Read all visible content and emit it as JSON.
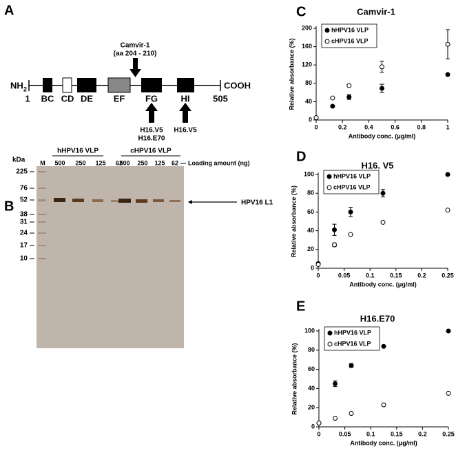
{
  "panel_a": {
    "label": "A",
    "n_terminus": "NH",
    "n_terminus_sub": "2",
    "c_terminus": "COOH",
    "start": "1",
    "end": "505",
    "loops": [
      "BC",
      "CD",
      "DE",
      "EF",
      "FG",
      "HI"
    ],
    "top_antibody": {
      "name": "Camvir-1",
      "epitope": "(aa 204 - 210)"
    },
    "bottom_antibodies": [
      {
        "names": [
          "H16.V5",
          "H16.E70"
        ]
      },
      {
        "names": [
          "H16.V5"
        ]
      }
    ]
  },
  "panel_b": {
    "label": "B",
    "unit": "kDa",
    "marker_lane": "M",
    "markers": [
      "225",
      "76",
      "52",
      "38",
      "31",
      "24",
      "17",
      "10"
    ],
    "groups": [
      {
        "name": "hHPV16 VLP",
        "lanes": [
          "500",
          "250",
          "125",
          "62"
        ]
      },
      {
        "name": "cHPV16 VLP",
        "lanes": [
          "500",
          "250",
          "125",
          "62"
        ]
      }
    ],
    "loading_label": "Loading amount (ng)",
    "band_label": "HPV16 L1"
  },
  "chart_data": [
    {
      "type": "scatter",
      "panel": "C",
      "title": "Camvir-1",
      "x_label": "Antibody conc. (μg/ml)",
      "y_label": "Relative absorbance (%)",
      "x": [
        0,
        0.125,
        0.25,
        0.5,
        1
      ],
      "xlim": [
        0,
        1
      ],
      "xticks": [
        0,
        0.2,
        0.4,
        0.6,
        0.8,
        1
      ],
      "ylim": [
        0,
        200
      ],
      "yticks": [
        0,
        40,
        80,
        120,
        160,
        200
      ],
      "legend": "upper left",
      "series": [
        {
          "name": "hHPV16 VLP",
          "color": "#000000",
          "values": [
            5,
            30,
            50,
            69,
            99
          ],
          "errors": [
            null,
            null,
            5,
            9,
            null
          ]
        },
        {
          "name": "cHPV16 VLP",
          "color": "#ffffff",
          "values": [
            5,
            48,
            75,
            116,
            165
          ],
          "errors": [
            null,
            null,
            null,
            12,
            32
          ]
        }
      ]
    },
    {
      "type": "scatter",
      "panel": "D",
      "title": "H16. V5",
      "x_label": "Antibody conc. (μg/ml)",
      "y_label": "Relative absorbance (%)",
      "x": [
        0,
        0.03125,
        0.0625,
        0.125,
        0.25
      ],
      "xlim": [
        0,
        0.25
      ],
      "xticks": [
        0,
        0.05,
        0.1,
        0.15,
        0.2,
        0.25
      ],
      "ylim": [
        0,
        100
      ],
      "yticks": [
        0,
        20,
        40,
        60,
        80,
        100
      ],
      "legend": "upper left",
      "series": [
        {
          "name": "hHPV16 VLP",
          "color": "#000000",
          "values": [
            5,
            41,
            60,
            80,
            100
          ],
          "errors": [
            null,
            6,
            5,
            4,
            null
          ]
        },
        {
          "name": "cHPV16 VLP",
          "color": "#ffffff",
          "values": [
            4,
            25,
            36,
            49,
            62
          ],
          "errors": [
            null,
            2,
            null,
            null,
            null
          ]
        }
      ]
    },
    {
      "type": "scatter",
      "panel": "E",
      "title": "H16.E70",
      "x_label": "Antibody conc. (μg/ml)",
      "y_label": "Relative absorbance (%)",
      "x": [
        0,
        0.03125,
        0.0625,
        0.125,
        0.25
      ],
      "xlim": [
        0,
        0.25
      ],
      "xticks": [
        0,
        0.05,
        0.1,
        0.15,
        0.2,
        0.25
      ],
      "ylim": [
        0,
        100
      ],
      "yticks": [
        0,
        20,
        40,
        60,
        80,
        100
      ],
      "legend": "upper left",
      "series": [
        {
          "name": "hHPV16 VLP",
          "color": "#000000",
          "values": [
            4,
            45,
            64,
            84,
            100
          ],
          "errors": [
            null,
            3,
            2,
            null,
            null
          ]
        },
        {
          "name": "cHPV16 VLP",
          "color": "#ffffff",
          "values": [
            4,
            9,
            14,
            23,
            35
          ],
          "errors": [
            null,
            null,
            null,
            null,
            null
          ]
        }
      ]
    }
  ]
}
